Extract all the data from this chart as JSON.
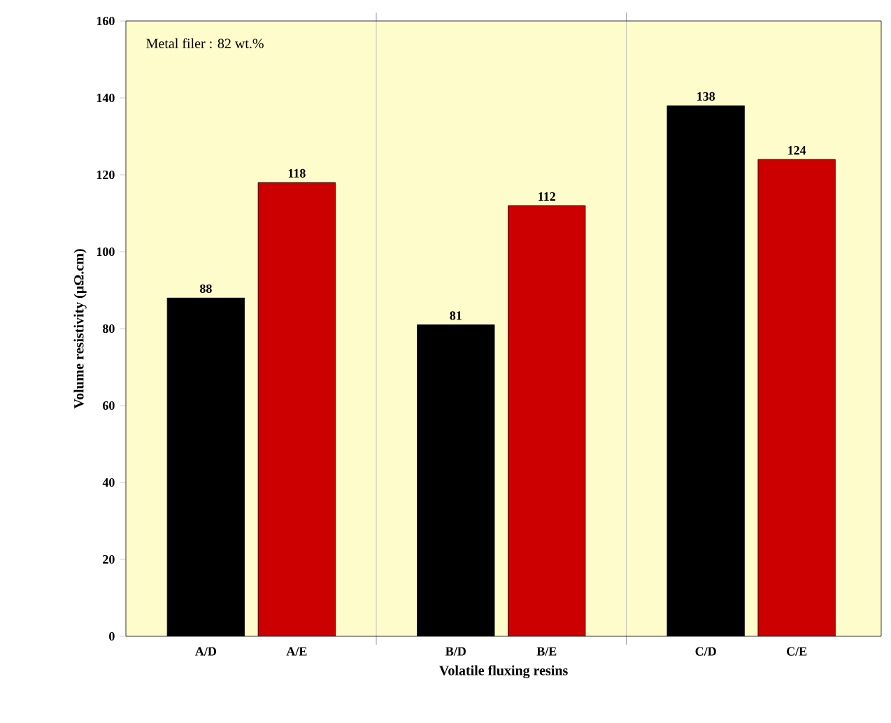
{
  "chart_data": {
    "type": "bar",
    "xlabel": "Volatile fluxing resins",
    "ylabel": "Volume resistivity (µΩ.cm)",
    "categories": [
      "A/D",
      "A/E",
      "B/D",
      "B/E",
      "C/D",
      "C/E"
    ],
    "values": [
      88,
      118,
      81,
      112,
      138,
      124
    ],
    "colors": [
      "#000000",
      "#cc0000",
      "#000000",
      "#cc0000",
      "#000000",
      "#cc0000"
    ],
    "ylim": [
      0,
      160
    ],
    "yticks": [
      0,
      20,
      40,
      60,
      80,
      100,
      120,
      140,
      160
    ],
    "data_labels": true,
    "grid": "x",
    "annotations": [
      "Metal filer : 82 wt.%"
    ]
  }
}
